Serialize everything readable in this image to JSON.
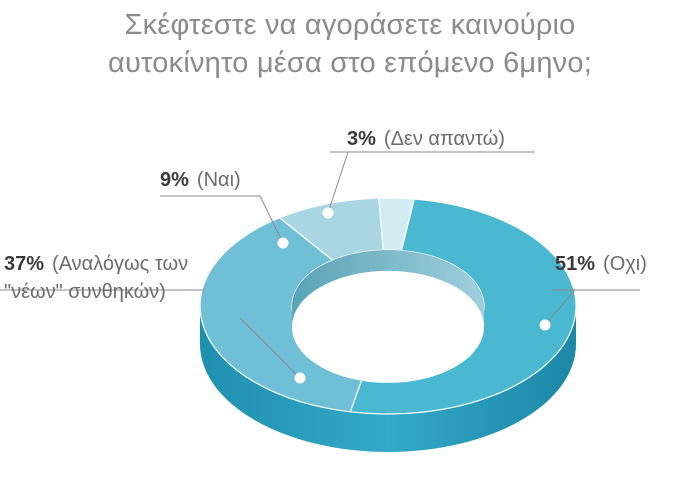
{
  "title_lines": [
    "Σκέφτεστε να αγοράσετε καινούριο",
    "αυτοκίνητο μέσα στο επόμενο 6μηνο;"
  ],
  "chart_data": {
    "type": "pie",
    "style": "3d-donut",
    "title": "Σκέφτεστε να αγοράσετε καινούριο αυτοκίνητο μέσα στο επόμενο 6μηνο;",
    "slices": [
      {
        "label": "Οχι",
        "value": 51,
        "pct_text": "51%",
        "text_lines": [
          "(Οχι)"
        ],
        "color": "#4ab8d1"
      },
      {
        "label": "Αναλόγως των \"νέων\" συνθηκών",
        "value": 37,
        "pct_text": "37%",
        "text_lines": [
          "(Αναλόγως των",
          "\"νέων\" συνθηκών)"
        ],
        "color": "#6fc0d6"
      },
      {
        "label": "Ναι",
        "value": 9,
        "pct_text": "9%",
        "text_lines": [
          "(Ναι)"
        ],
        "color": "#a9d6e3"
      },
      {
        "label": "Δεν απαντώ",
        "value": 3,
        "pct_text": "3%",
        "text_lines": [
          "(Δεν απαντώ)"
        ],
        "color": "#d3ebf2"
      }
    ]
  }
}
